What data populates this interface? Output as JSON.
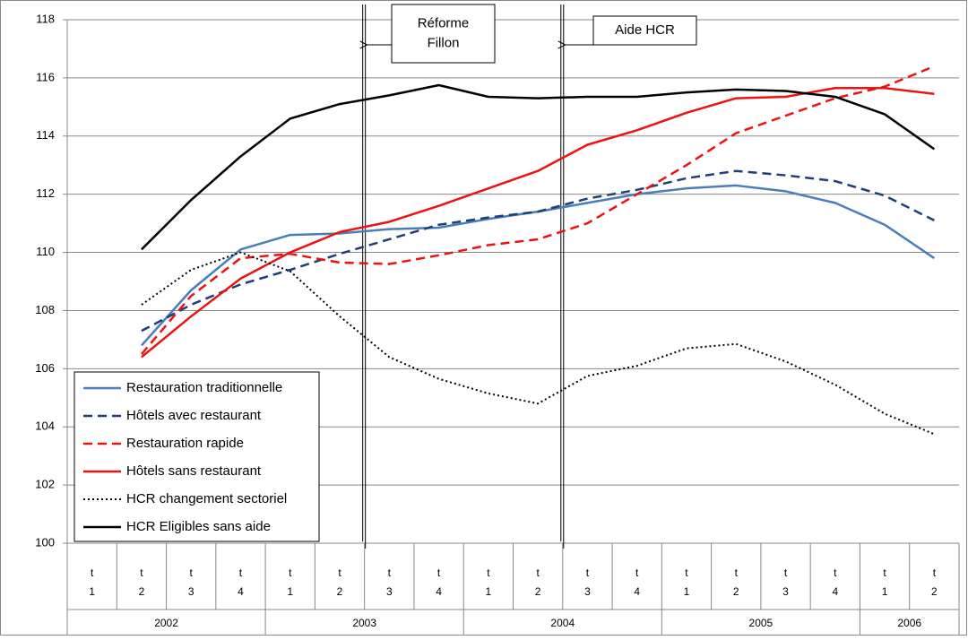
{
  "chart_data": {
    "type": "line",
    "categories": [
      [
        "t",
        "1"
      ],
      [
        "t",
        "2"
      ],
      [
        "t",
        "3"
      ],
      [
        "t",
        "4"
      ],
      [
        "t",
        "1"
      ],
      [
        "t",
        "2"
      ],
      [
        "t",
        "3"
      ],
      [
        "t",
        "4"
      ],
      [
        "t",
        "1"
      ],
      [
        "t",
        "2"
      ],
      [
        "t",
        "3"
      ],
      [
        "t",
        "4"
      ],
      [
        "t",
        "1"
      ],
      [
        "t",
        "2"
      ],
      [
        "t",
        "3"
      ],
      [
        "t",
        "4"
      ],
      [
        "t",
        "1"
      ],
      [
        "t",
        "2"
      ]
    ],
    "groups": [
      {
        "label": "2002",
        "count": 4
      },
      {
        "label": "2003",
        "count": 4
      },
      {
        "label": "2004",
        "count": 4
      },
      {
        "label": "2005",
        "count": 4
      },
      {
        "label": "2006",
        "count": 2
      }
    ],
    "ylim": [
      100,
      118
    ],
    "yticks": [
      100,
      102,
      104,
      106,
      108,
      110,
      112,
      114,
      116,
      118
    ],
    "grid": true,
    "series": [
      {
        "name": "Restauration traditionnelle",
        "color": "#4a7ebb",
        "style": "solid",
        "values": [
          null,
          106.8,
          108.7,
          110.1,
          110.6,
          110.65,
          110.8,
          110.85,
          111.15,
          111.4,
          111.7,
          112.0,
          112.2,
          112.3,
          112.1,
          111.7,
          110.95,
          109.8
        ]
      },
      {
        "name": "Hôtels avec restaurant",
        "color": "#1f3f74",
        "style": "dashed",
        "values": [
          null,
          107.3,
          108.2,
          108.9,
          109.4,
          109.95,
          110.45,
          110.95,
          111.2,
          111.4,
          111.85,
          112.15,
          112.55,
          112.8,
          112.65,
          112.45,
          111.95,
          111.1
        ]
      },
      {
        "name": "Restauration rapide",
        "color": "#ee1111",
        "style": "dashed",
        "values": [
          null,
          106.5,
          108.5,
          109.8,
          109.95,
          109.65,
          109.6,
          109.9,
          110.25,
          110.45,
          111.0,
          112.0,
          113.0,
          114.1,
          114.7,
          115.3,
          115.7,
          116.4
        ]
      },
      {
        "name": "Hôtels sans restaurant",
        "color": "#ee1111",
        "style": "solid",
        "values": [
          null,
          106.4,
          107.8,
          109.1,
          110.0,
          110.7,
          111.05,
          111.6,
          112.2,
          112.8,
          113.7,
          114.2,
          114.8,
          115.3,
          115.35,
          115.65,
          115.65,
          115.45
        ]
      },
      {
        "name": "HCR changement sectoriel",
        "color": "#000000",
        "style": "dotted",
        "values": [
          null,
          108.2,
          109.4,
          110.0,
          109.35,
          107.8,
          106.4,
          105.65,
          105.15,
          104.8,
          105.75,
          106.1,
          106.7,
          106.85,
          106.25,
          105.45,
          104.45,
          103.75
        ]
      },
      {
        "name": "HCR Eligibles sans aide",
        "color": "#000000",
        "style": "solid",
        "values": [
          null,
          110.1,
          111.8,
          113.3,
          114.6,
          115.1,
          115.4,
          115.75,
          115.35,
          115.3,
          115.35,
          115.35,
          115.5,
          115.6,
          115.55,
          115.35,
          114.75,
          113.55
        ]
      }
    ],
    "annotations": [
      {
        "lines": [
          "Réforme",
          "Fillon"
        ]
      },
      {
        "lines": [
          "Aide HCR"
        ]
      }
    ]
  }
}
